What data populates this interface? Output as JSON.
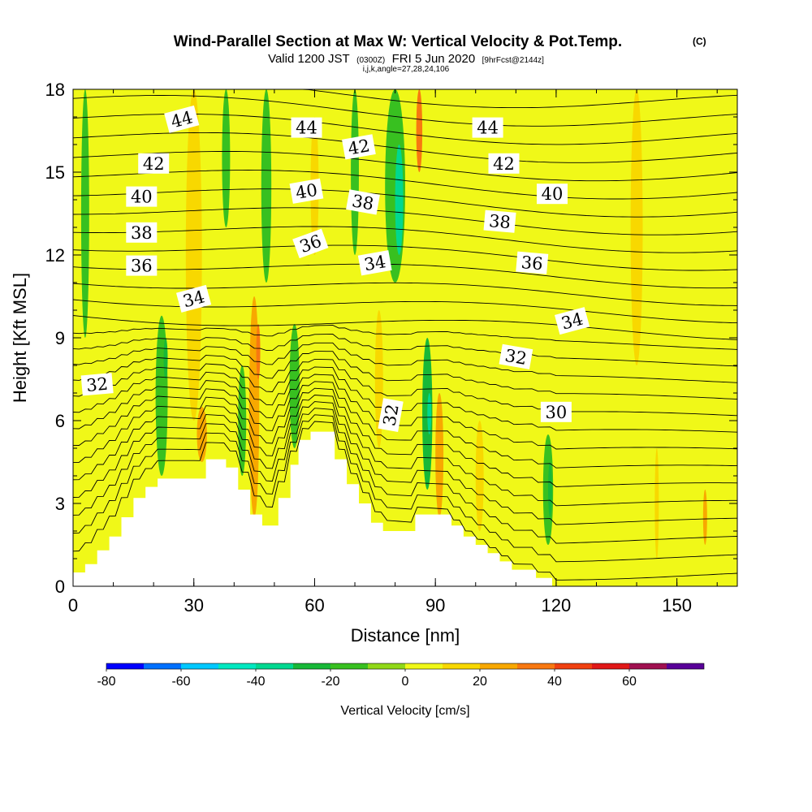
{
  "chart_data": {
    "type": "heatmap",
    "title": "Wind-Parallel Section at Max W: Vertical Velocity & Pot.Temp.",
    "title_mark": "(C)",
    "subtitle_main": "Valid 1200 JST",
    "subtitle_utc": "(0300Z)",
    "subtitle_date": "FRI 5 Jun 2020",
    "subtitle_fcst": "[9hrFcst@2144z]",
    "subtitle_index": "i,j,k,angle=27,28,24,106",
    "xlabel": "Distance [nm]",
    "ylabel": "Height [Kft MSL]",
    "xlim": [
      0,
      165
    ],
    "ylim": [
      0,
      18
    ],
    "x_ticks": [
      "0",
      "30",
      "60",
      "90",
      "120",
      "150"
    ],
    "y_ticks": [
      "0",
      "3",
      "6",
      "9",
      "12",
      "15",
      "18"
    ],
    "colorbar": {
      "label": "Vertical Velocity [cm/s]",
      "ticks": [
        "-80",
        "-60",
        "-40",
        "-20",
        "0",
        "20",
        "40",
        "60"
      ],
      "levels": [
        -80,
        -70,
        -60,
        -50,
        -40,
        -30,
        -20,
        -10,
        0,
        10,
        20,
        30,
        40,
        50,
        60,
        70
      ],
      "colors": [
        "#0000ff",
        "#0070ff",
        "#00c8ff",
        "#00e8c0",
        "#00d890",
        "#18b838",
        "#38c020",
        "#90d818",
        "#f0f818",
        "#f8d800",
        "#f8a800",
        "#f87810",
        "#f04010",
        "#e01818",
        "#a01050",
        "#580098"
      ]
    },
    "background_vv_cm_s": 5,
    "vv_columns": [
      {
        "x": 3,
        "top": 18,
        "bottom": 9,
        "w": 2,
        "vv": -15
      },
      {
        "x": 22,
        "top": 9.8,
        "bottom": 4,
        "w": 3,
        "vv": -18
      },
      {
        "x": 23,
        "top": 9,
        "bottom": 7.5,
        "w": 1,
        "vv": -30
      },
      {
        "x": 30,
        "top": 18,
        "bottom": 6,
        "w": 4,
        "vv": 18
      },
      {
        "x": 32,
        "top": 6.5,
        "bottom": 4.5,
        "w": 2.5,
        "vv": 28
      },
      {
        "x": 38,
        "top": 18,
        "bottom": 13,
        "w": 2,
        "vv": -15
      },
      {
        "x": 45,
        "top": 10.5,
        "bottom": 2.5,
        "w": 2.5,
        "vv": 20
      },
      {
        "x": 48,
        "top": 18,
        "bottom": 11,
        "w": 2.5,
        "vv": -18
      },
      {
        "x": 42,
        "top": 8,
        "bottom": 4,
        "w": 2,
        "vv": -20
      },
      {
        "x": 46,
        "top": 9.5,
        "bottom": 7.5,
        "w": 1,
        "vv": 38
      },
      {
        "x": 55,
        "top": 9.5,
        "bottom": 5,
        "w": 2.5,
        "vv": -18
      },
      {
        "x": 60,
        "top": 17,
        "bottom": 12,
        "w": 2,
        "vv": 18
      },
      {
        "x": 70,
        "top": 18,
        "bottom": 12,
        "w": 2,
        "vv": -12
      },
      {
        "x": 76,
        "top": 10,
        "bottom": 5,
        "w": 2,
        "vv": 18
      },
      {
        "x": 80,
        "top": 18,
        "bottom": 11,
        "w": 5,
        "vv": -20
      },
      {
        "x": 81,
        "top": 16,
        "bottom": 12,
        "w": 2,
        "vv": -32
      },
      {
        "x": 86,
        "top": 18,
        "bottom": 15,
        "w": 1.5,
        "vv": 30
      },
      {
        "x": 88,
        "top": 9,
        "bottom": 3.5,
        "w": 2.5,
        "vv": -22
      },
      {
        "x": 88.5,
        "top": 7,
        "bottom": 5.5,
        "w": 1,
        "vv": -38
      },
      {
        "x": 91,
        "top": 7,
        "bottom": 2.5,
        "w": 2,
        "vv": 22
      },
      {
        "x": 101,
        "top": 6,
        "bottom": 2,
        "w": 2,
        "vv": 15
      },
      {
        "x": 118,
        "top": 5.5,
        "bottom": 1.5,
        "w": 2.5,
        "vv": -20
      },
      {
        "x": 118.5,
        "top": 4.5,
        "bottom": 2.5,
        "w": 1,
        "vv": -30
      },
      {
        "x": 140,
        "top": 18,
        "bottom": 8,
        "w": 3,
        "vv": 15
      },
      {
        "x": 145,
        "top": 5,
        "bottom": 1,
        "w": 1,
        "vv": 15
      },
      {
        "x": 157,
        "top": 3.5,
        "bottom": 1.5,
        "w": 1,
        "vv": 20
      }
    ],
    "terrain": [
      [
        0,
        0.5
      ],
      [
        3,
        0.5
      ],
      [
        3,
        0.8
      ],
      [
        6,
        0.8
      ],
      [
        6,
        1.3
      ],
      [
        9,
        1.3
      ],
      [
        9,
        1.8
      ],
      [
        12,
        1.8
      ],
      [
        12,
        2.5
      ],
      [
        15,
        2.5
      ],
      [
        15,
        3.2
      ],
      [
        18,
        3.2
      ],
      [
        18,
        3.6
      ],
      [
        21,
        3.6
      ],
      [
        21,
        3.9
      ],
      [
        33,
        3.9
      ],
      [
        33,
        4.6
      ],
      [
        38,
        4.6
      ],
      [
        38,
        4.3
      ],
      [
        41,
        4.3
      ],
      [
        41,
        3.5
      ],
      [
        44,
        3.5
      ],
      [
        44,
        2.6
      ],
      [
        47,
        2.6
      ],
      [
        47,
        2.2
      ],
      [
        51,
        2.2
      ],
      [
        51,
        3.2
      ],
      [
        54,
        3.2
      ],
      [
        54,
        4.4
      ],
      [
        56,
        4.4
      ],
      [
        56,
        5.3
      ],
      [
        59,
        5.3
      ],
      [
        59,
        5.6
      ],
      [
        65,
        5.6
      ],
      [
        65,
        4.6
      ],
      [
        68,
        4.6
      ],
      [
        68,
        3.7
      ],
      [
        71,
        3.7
      ],
      [
        71,
        3.0
      ],
      [
        74,
        3.0
      ],
      [
        74,
        2.3
      ],
      [
        77,
        2.3
      ],
      [
        77,
        2.0
      ],
      [
        85,
        2.0
      ],
      [
        85,
        2.6
      ],
      [
        94,
        2.6
      ],
      [
        94,
        2.2
      ],
      [
        97,
        2.2
      ],
      [
        97,
        1.8
      ],
      [
        100,
        1.8
      ],
      [
        100,
        1.5
      ],
      [
        103,
        1.5
      ],
      [
        103,
        1.2
      ],
      [
        106,
        1.2
      ],
      [
        106,
        0.9
      ],
      [
        109,
        0.9
      ],
      [
        109,
        0.6
      ],
      [
        115,
        0.6
      ],
      [
        115,
        0.3
      ],
      [
        119,
        0.3
      ],
      [
        119,
        0
      ],
      [
        165,
        0
      ]
    ],
    "theta_base_k": 31,
    "theta_step_k": 0.5,
    "theta_level_count": 28,
    "contour_labels": [
      {
        "text": "44",
        "x": 27,
        "y": 16.9,
        "rot": -15
      },
      {
        "text": "44",
        "x": 58,
        "y": 16.6,
        "rot": 0
      },
      {
        "text": "44",
        "x": 103,
        "y": 16.6,
        "rot": 0
      },
      {
        "text": "42",
        "x": 20,
        "y": 15.3,
        "rot": 0
      },
      {
        "text": "42",
        "x": 71,
        "y": 15.9,
        "rot": -10
      },
      {
        "text": "42",
        "x": 107,
        "y": 15.3,
        "rot": 0
      },
      {
        "text": "40",
        "x": 17,
        "y": 14.1,
        "rot": 0
      },
      {
        "text": "40",
        "x": 58,
        "y": 14.3,
        "rot": -10
      },
      {
        "text": "40",
        "x": 119,
        "y": 14.2,
        "rot": 0
      },
      {
        "text": "38",
        "x": 17,
        "y": 12.8,
        "rot": 0
      },
      {
        "text": "38",
        "x": 72,
        "y": 13.9,
        "rot": 10
      },
      {
        "text": "38",
        "x": 106,
        "y": 13.2,
        "rot": 5
      },
      {
        "text": "36",
        "x": 17,
        "y": 11.6,
        "rot": 0
      },
      {
        "text": "36",
        "x": 59,
        "y": 12.4,
        "rot": -20
      },
      {
        "text": "36",
        "x": 114,
        "y": 11.7,
        "rot": 5
      },
      {
        "text": "34",
        "x": 30,
        "y": 10.4,
        "rot": -15
      },
      {
        "text": "34",
        "x": 75,
        "y": 11.7,
        "rot": -10
      },
      {
        "text": "34",
        "x": 124,
        "y": 9.6,
        "rot": -15
      },
      {
        "text": "32",
        "x": 6,
        "y": 7.3,
        "rot": -5
      },
      {
        "text": "32",
        "x": 79,
        "y": 6.2,
        "rot": -80
      },
      {
        "text": "32",
        "x": 110,
        "y": 8.3,
        "rot": 10
      },
      {
        "text": "30",
        "x": 120,
        "y": 6.3,
        "rot": 0
      }
    ]
  }
}
